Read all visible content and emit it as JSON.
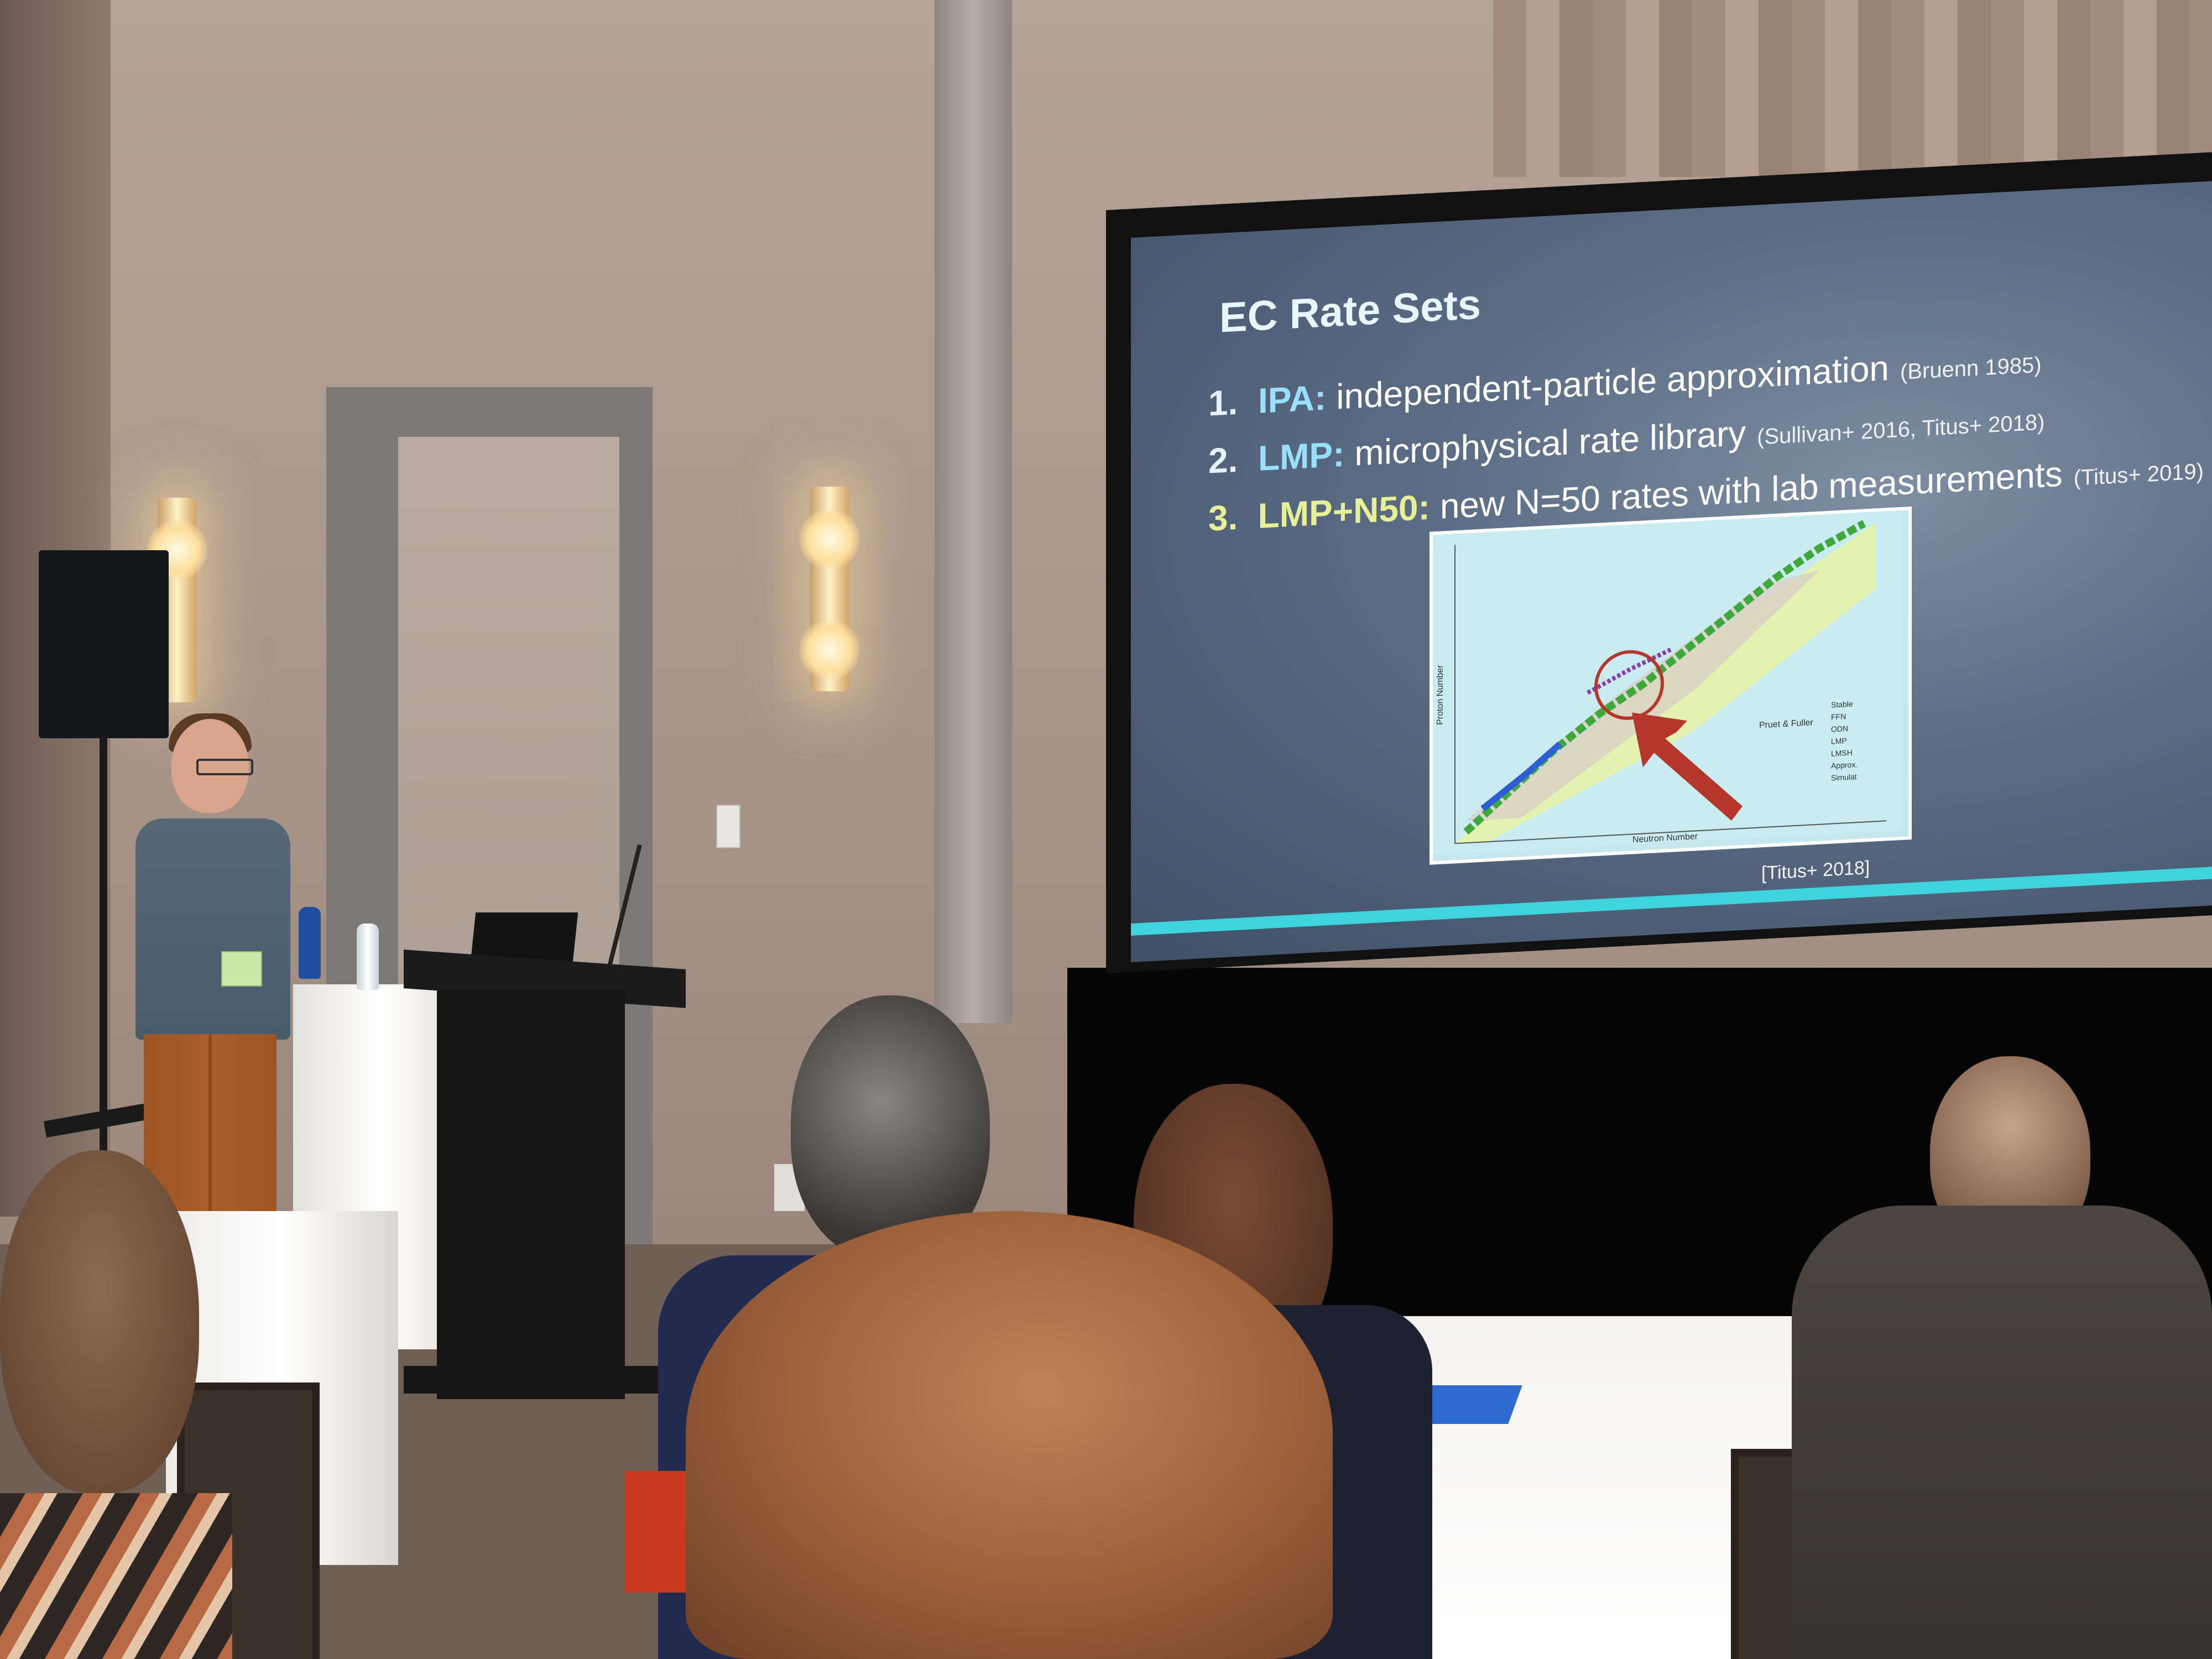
{
  "slide": {
    "title": "EC Rate Sets",
    "items": [
      {
        "number": "1.",
        "key": "IPA:",
        "description": "independent-particle approximation",
        "citation": "(Bruenn 1985)"
      },
      {
        "number": "2.",
        "key": "LMP:",
        "description": "microphysical rate library",
        "citation": "(Sullivan+ 2016, Titus+ 2018)"
      },
      {
        "number": "3.",
        "key": "LMP+N50:",
        "description": "new N=50 rates with lab measurements",
        "citation": "(Titus+ 2019)"
      }
    ],
    "figure_citation": "[Titus+ 2018]",
    "figure": {
      "x_axis_label": "Neutron Number",
      "y_axis_label": "Proton Number",
      "legend_title": "Pruet & Fuller",
      "legend_items": [
        "Stable",
        "FFN",
        "ODN",
        "LMP",
        "LMSH",
        "Approx.",
        "Simulat"
      ]
    },
    "colors": {
      "background": "#5d6f86",
      "title": "#e8f6ff",
      "highlight": "#e8f096",
      "accent_bar": "#3fd3de",
      "arrow": "#b5362b"
    }
  }
}
